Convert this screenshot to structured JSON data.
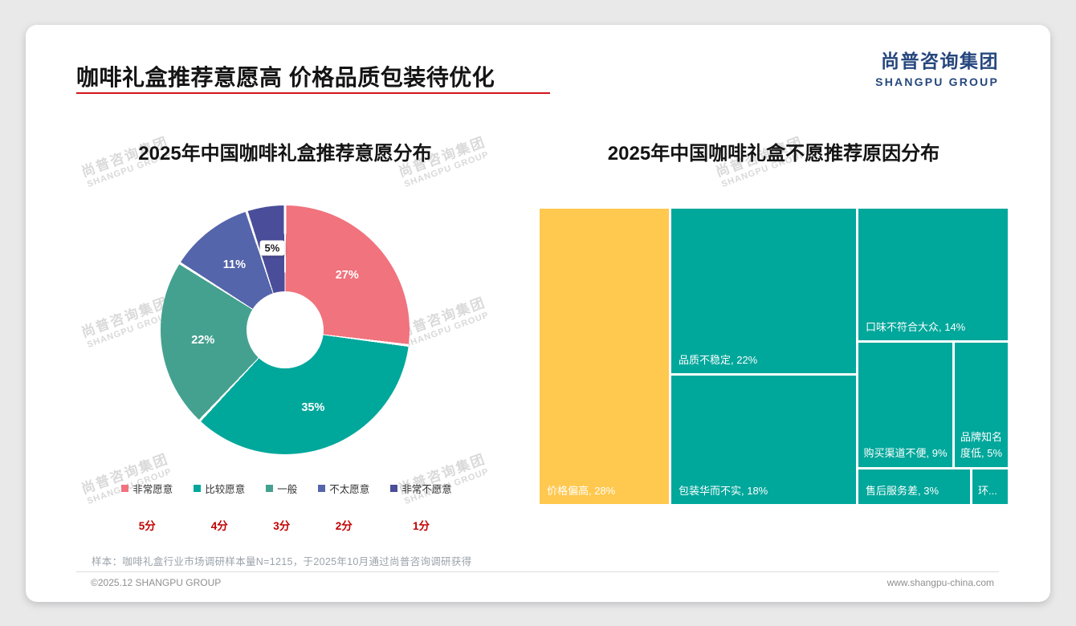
{
  "page": {
    "title": "咖啡礼盒推荐意愿高 价格品质包装待优化",
    "logo": {
      "cn": "尚普咨询集团",
      "en": "SHANGPU GROUP"
    },
    "watermark": {
      "cn": "尚普咨询集团",
      "en": "SHANGPU GROUP"
    },
    "footnote": "样本：咖啡礼盒行业市场调研样本量N=1215，于2025年10月通过尚普咨询调研获得",
    "footer_left": "©2025.12 SHANGPU GROUP",
    "footer_right": "www.shangpu-china.com"
  },
  "chart_data": [
    {
      "type": "pie",
      "subtype": "donut",
      "title": "2025年中国咖啡礼盒推荐意愿分布",
      "unit": "%",
      "start_angle_deg": 0,
      "direction": "clockwise",
      "legend_position": "bottom",
      "series": [
        {
          "name": "非常愿意",
          "score": "5分",
          "value": 27,
          "color": "#F0737D"
        },
        {
          "name": "比较愿意",
          "score": "4分",
          "value": 35,
          "color": "#00A79B"
        },
        {
          "name": "一般",
          "score": "3分",
          "value": 22,
          "color": "#45A18F"
        },
        {
          "name": "不太愿意",
          "score": "2分",
          "value": 11,
          "color": "#5565AB"
        },
        {
          "name": "非常不愿意",
          "score": "1分",
          "value": 5,
          "color": "#4A4D99"
        }
      ]
    },
    {
      "type": "treemap",
      "title": "2025年中国咖啡礼盒不愿推荐原因分布",
      "unit": "%",
      "items": [
        {
          "label": "价格偏高, 28%",
          "name": "价格偏高",
          "value": 28,
          "color": "#FFC84E"
        },
        {
          "label": "品质不稳定, 22%",
          "name": "品质不稳定",
          "value": 22,
          "color": "#00A79B"
        },
        {
          "label": "包装华而不实, 18%",
          "name": "包装华而不实",
          "value": 18,
          "color": "#00A79B"
        },
        {
          "label": "口味不符合大众, 14%",
          "name": "口味不符合大众",
          "value": 14,
          "color": "#00A79B"
        },
        {
          "label": "购买渠道不便, 9%",
          "name": "购买渠道不便",
          "value": 9,
          "color": "#00A79B"
        },
        {
          "label": "品牌知名度低, 5%",
          "name": "品牌知名度低",
          "value": 5,
          "color": "#00A79B"
        },
        {
          "label": "售后服务差, 3%",
          "name": "售后服务差",
          "value": 3,
          "color": "#00A79B"
        },
        {
          "label": "环...",
          "name": "环...",
          "value": 1,
          "color": "#00A79B"
        }
      ]
    }
  ]
}
